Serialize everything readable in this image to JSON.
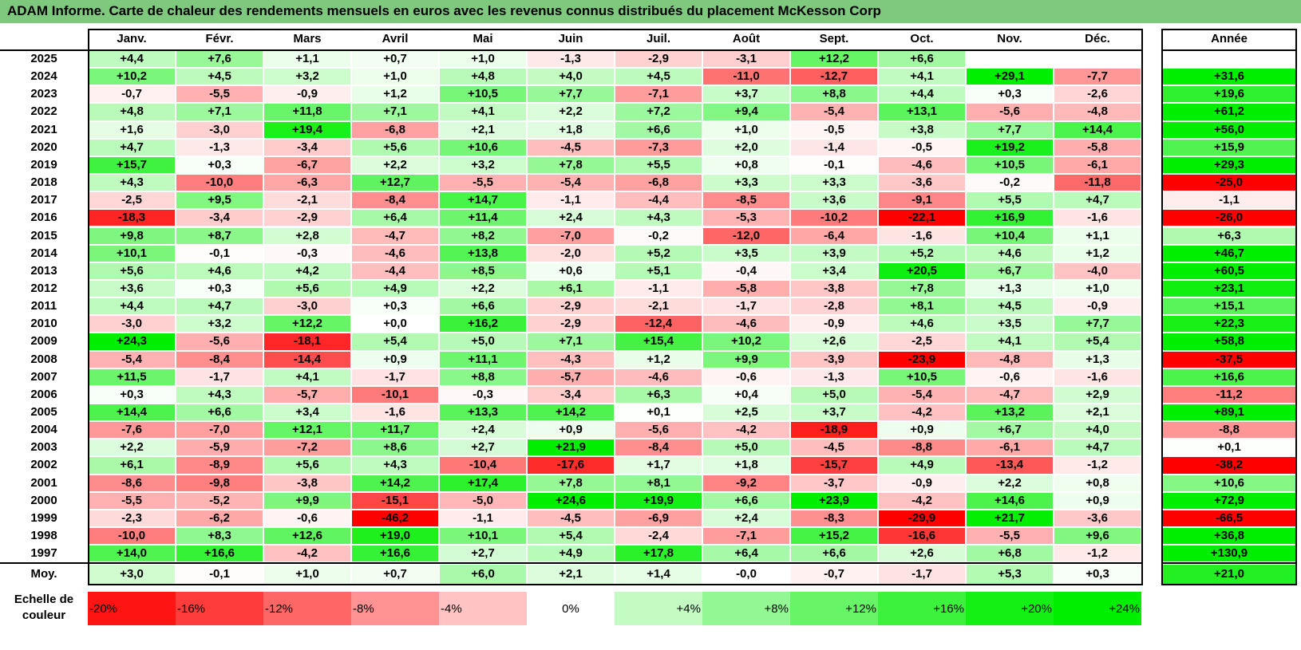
{
  "title": "ADAM Informe. Carte de chaleur des rendements mensuels en euros avec les revenus connus distribués du placement McKesson Corp",
  "chart_data": {
    "type": "heatmap",
    "columns": [
      "Janv.",
      "Févr.",
      "Mars",
      "Avril",
      "Mai",
      "Juin",
      "Juil.",
      "Août",
      "Sept.",
      "Oct.",
      "Nov.",
      "Déc."
    ],
    "year_header": "Année",
    "rows": [
      {
        "year": "2025",
        "values": [
          "+4,4",
          "+7,6",
          "+1,1",
          "+0,7",
          "+1,0",
          "-1,3",
          "-2,9",
          "-3,1",
          "+12,2",
          "+6,6",
          "",
          ""
        ],
        "annual": ""
      },
      {
        "year": "2024",
        "values": [
          "+10,2",
          "+4,5",
          "+3,2",
          "+1,0",
          "+4,8",
          "+4,0",
          "+4,5",
          "-11,0",
          "-12,7",
          "+4,1",
          "+29,1",
          "-7,7"
        ],
        "annual": "+31,6"
      },
      {
        "year": "2023",
        "values": [
          "-0,7",
          "-5,5",
          "-0,9",
          "+1,2",
          "+10,5",
          "+7,7",
          "-7,1",
          "+3,7",
          "+8,8",
          "+4,4",
          "+0,3",
          "-2,6"
        ],
        "annual": "+19,6"
      },
      {
        "year": "2022",
        "values": [
          "+4,8",
          "+7,1",
          "+11,8",
          "+7,1",
          "+4,1",
          "+2,2",
          "+7,2",
          "+9,4",
          "-5,4",
          "+13,1",
          "-5,6",
          "-4,8"
        ],
        "annual": "+61,2"
      },
      {
        "year": "2021",
        "values": [
          "+1,6",
          "-3,0",
          "+19,4",
          "-6,8",
          "+2,1",
          "+1,8",
          "+6,6",
          "+1,0",
          "-0,5",
          "+3,8",
          "+7,7",
          "+14,4"
        ],
        "annual": "+56,0"
      },
      {
        "year": "2020",
        "values": [
          "+4,7",
          "-1,3",
          "-3,4",
          "+5,6",
          "+10,6",
          "-4,5",
          "-7,3",
          "+2,0",
          "-1,4",
          "-0,5",
          "+19,2",
          "-5,8"
        ],
        "annual": "+15,9"
      },
      {
        "year": "2019",
        "values": [
          "+15,7",
          "+0,3",
          "-6,7",
          "+2,2",
          "+3,2",
          "+7,8",
          "+5,5",
          "+0,8",
          "-0,1",
          "-4,6",
          "+10,5",
          "-6,1"
        ],
        "annual": "+29,3"
      },
      {
        "year": "2018",
        "values": [
          "+4,3",
          "-10,0",
          "-6,3",
          "+12,7",
          "-5,5",
          "-5,4",
          "-6,8",
          "+3,3",
          "+3,3",
          "-3,6",
          "-0,2",
          "-11,8"
        ],
        "annual": "-25,0"
      },
      {
        "year": "2017",
        "values": [
          "-2,5",
          "+9,5",
          "-2,1",
          "-8,4",
          "+14,7",
          "-1,1",
          "-4,4",
          "-8,5",
          "+3,6",
          "-9,1",
          "+5,5",
          "+4,7"
        ],
        "annual": "-1,1"
      },
      {
        "year": "2016",
        "values": [
          "-18,3",
          "-3,4",
          "-2,9",
          "+6,4",
          "+11,4",
          "+2,4",
          "+4,3",
          "-5,3",
          "-10,2",
          "-22,1",
          "+16,9",
          "-1,6"
        ],
        "annual": "-26,0"
      },
      {
        "year": "2015",
        "values": [
          "+9,8",
          "+8,7",
          "+2,8",
          "-4,7",
          "+8,2",
          "-7,0",
          "-0,2",
          "-12,0",
          "-6,4",
          "-1,6",
          "+10,4",
          "+1,1"
        ],
        "annual": "+6,3"
      },
      {
        "year": "2014",
        "values": [
          "+10,1",
          "-0,1",
          "-0,3",
          "-4,6",
          "+13,8",
          "-2,0",
          "+5,2",
          "+3,5",
          "+3,9",
          "+5,2",
          "+4,6",
          "+1,2"
        ],
        "annual": "+46,7"
      },
      {
        "year": "2013",
        "values": [
          "+5,6",
          "+4,6",
          "+4,2",
          "-4,4",
          "+8,5",
          "+0,6",
          "+5,1",
          "-0,4",
          "+3,4",
          "+20,5",
          "+6,7",
          "-4,0"
        ],
        "annual": "+60,5"
      },
      {
        "year": "2012",
        "values": [
          "+3,6",
          "+0,3",
          "+5,6",
          "+4,9",
          "+2,2",
          "+6,1",
          "-1,1",
          "-5,8",
          "-3,8",
          "+7,8",
          "+1,3",
          "+1,0"
        ],
        "annual": "+23,1"
      },
      {
        "year": "2011",
        "values": [
          "+4,4",
          "+4,7",
          "-3,0",
          "+0,3",
          "+6,6",
          "-2,9",
          "-2,1",
          "-1,7",
          "-2,8",
          "+8,1",
          "+4,5",
          "-0,9"
        ],
        "annual": "+15,1"
      },
      {
        "year": "2010",
        "values": [
          "-3,0",
          "+3,2",
          "+12,2",
          "+0,0",
          "+16,2",
          "-2,9",
          "-12,4",
          "-4,6",
          "-0,9",
          "+4,6",
          "+3,5",
          "+7,7"
        ],
        "annual": "+22,3"
      },
      {
        "year": "2009",
        "values": [
          "+24,3",
          "-5,6",
          "-18,1",
          "+5,4",
          "+5,0",
          "+7,1",
          "+15,4",
          "+10,2",
          "+2,6",
          "-2,5",
          "+4,1",
          "+5,4"
        ],
        "annual": "+58,8"
      },
      {
        "year": "2008",
        "values": [
          "-5,4",
          "-8,4",
          "-14,4",
          "+0,9",
          "+11,1",
          "-4,3",
          "+1,2",
          "+9,9",
          "-3,9",
          "-23,9",
          "-4,8",
          "+1,3"
        ],
        "annual": "-37,5"
      },
      {
        "year": "2007",
        "values": [
          "+11,5",
          "-1,7",
          "+4,1",
          "-1,7",
          "+8,8",
          "-5,7",
          "-4,6",
          "-0,6",
          "-1,3",
          "+10,5",
          "-0,6",
          "-1,6"
        ],
        "annual": "+16,6"
      },
      {
        "year": "2006",
        "values": [
          "+0,3",
          "+4,3",
          "-5,7",
          "-10,1",
          "-0,3",
          "-3,4",
          "+6,3",
          "+0,4",
          "+5,0",
          "-5,4",
          "-4,7",
          "+2,9"
        ],
        "annual": "-11,2"
      },
      {
        "year": "2005",
        "values": [
          "+14,4",
          "+6,6",
          "+3,4",
          "-1,6",
          "+13,3",
          "+14,2",
          "+0,1",
          "+2,5",
          "+3,7",
          "-4,2",
          "+13,2",
          "+2,1"
        ],
        "annual": "+89,1"
      },
      {
        "year": "2004",
        "values": [
          "-7,6",
          "-7,0",
          "+12,1",
          "+11,7",
          "+2,4",
          "+0,9",
          "-5,6",
          "-4,2",
          "-18,9",
          "+0,9",
          "+6,7",
          "+4,0"
        ],
        "annual": "-8,8"
      },
      {
        "year": "2003",
        "values": [
          "+2,2",
          "-5,9",
          "-7,2",
          "+8,6",
          "+2,7",
          "+21,9",
          "-8,4",
          "+5,0",
          "-4,5",
          "-8,8",
          "-6,1",
          "+4,7"
        ],
        "annual": "+0,1"
      },
      {
        "year": "2002",
        "values": [
          "+6,1",
          "-8,9",
          "+5,6",
          "+4,3",
          "-10,4",
          "-17,6",
          "+1,7",
          "+1,8",
          "-15,7",
          "+4,9",
          "-13,4",
          "-1,2"
        ],
        "annual": "-38,2"
      },
      {
        "year": "2001",
        "values": [
          "-8,6",
          "-9,8",
          "-3,8",
          "+14,2",
          "+17,4",
          "+7,8",
          "+8,1",
          "-9,2",
          "-3,7",
          "-0,9",
          "+2,2",
          "+0,8"
        ],
        "annual": "+10,6"
      },
      {
        "year": "2000",
        "values": [
          "-5,5",
          "-5,2",
          "+9,9",
          "-15,1",
          "-5,0",
          "+24,6",
          "+19,9",
          "+6,6",
          "+23,9",
          "-4,2",
          "+14,6",
          "+0,9"
        ],
        "annual": "+72,9"
      },
      {
        "year": "1999",
        "values": [
          "-2,3",
          "-6,2",
          "-0,6",
          "-46,2",
          "-1,1",
          "-4,5",
          "-6,9",
          "+2,4",
          "-8,3",
          "-29,9",
          "+21,7",
          "-3,6"
        ],
        "annual": "-66,5"
      },
      {
        "year": "1998",
        "values": [
          "-10,0",
          "+8,3",
          "+12,6",
          "+19,0",
          "+10,1",
          "+5,4",
          "-2,4",
          "-7,1",
          "+15,2",
          "-16,6",
          "-5,5",
          "+9,6"
        ],
        "annual": "+36,8"
      },
      {
        "year": "1997",
        "values": [
          "+14,0",
          "+16,6",
          "-4,2",
          "+16,6",
          "+2,7",
          "+4,9",
          "+17,8",
          "+6,4",
          "+6,6",
          "+2,6",
          "+6,8",
          "-1,2"
        ],
        "annual": "+130,9"
      }
    ],
    "average_label": "Moy.",
    "average_values": [
      "+3,0",
      "-0,1",
      "+1,0",
      "+0,7",
      "+6,0",
      "+2,1",
      "+1,4",
      "-0,0",
      "-0,7",
      "-1,7",
      "+5,3",
      "+0,3"
    ],
    "average_annual": "+21,0",
    "scale_label": "Echelle de couleur",
    "scale": [
      {
        "label": "-20%",
        "value": -20
      },
      {
        "label": "-16%",
        "value": -16
      },
      {
        "label": "-12%",
        "value": -12
      },
      {
        "label": "-8%",
        "value": -8
      },
      {
        "label": "-4%",
        "value": -4
      },
      {
        "label": "0%",
        "value": 0
      },
      {
        "label": "+4%",
        "value": 4
      },
      {
        "label": "+8%",
        "value": 8
      },
      {
        "label": "+12%",
        "value": 12
      },
      {
        "label": "+16%",
        "value": 16
      },
      {
        "label": "+20%",
        "value": 20
      },
      {
        "label": "+24%",
        "value": 24
      }
    ]
  }
}
